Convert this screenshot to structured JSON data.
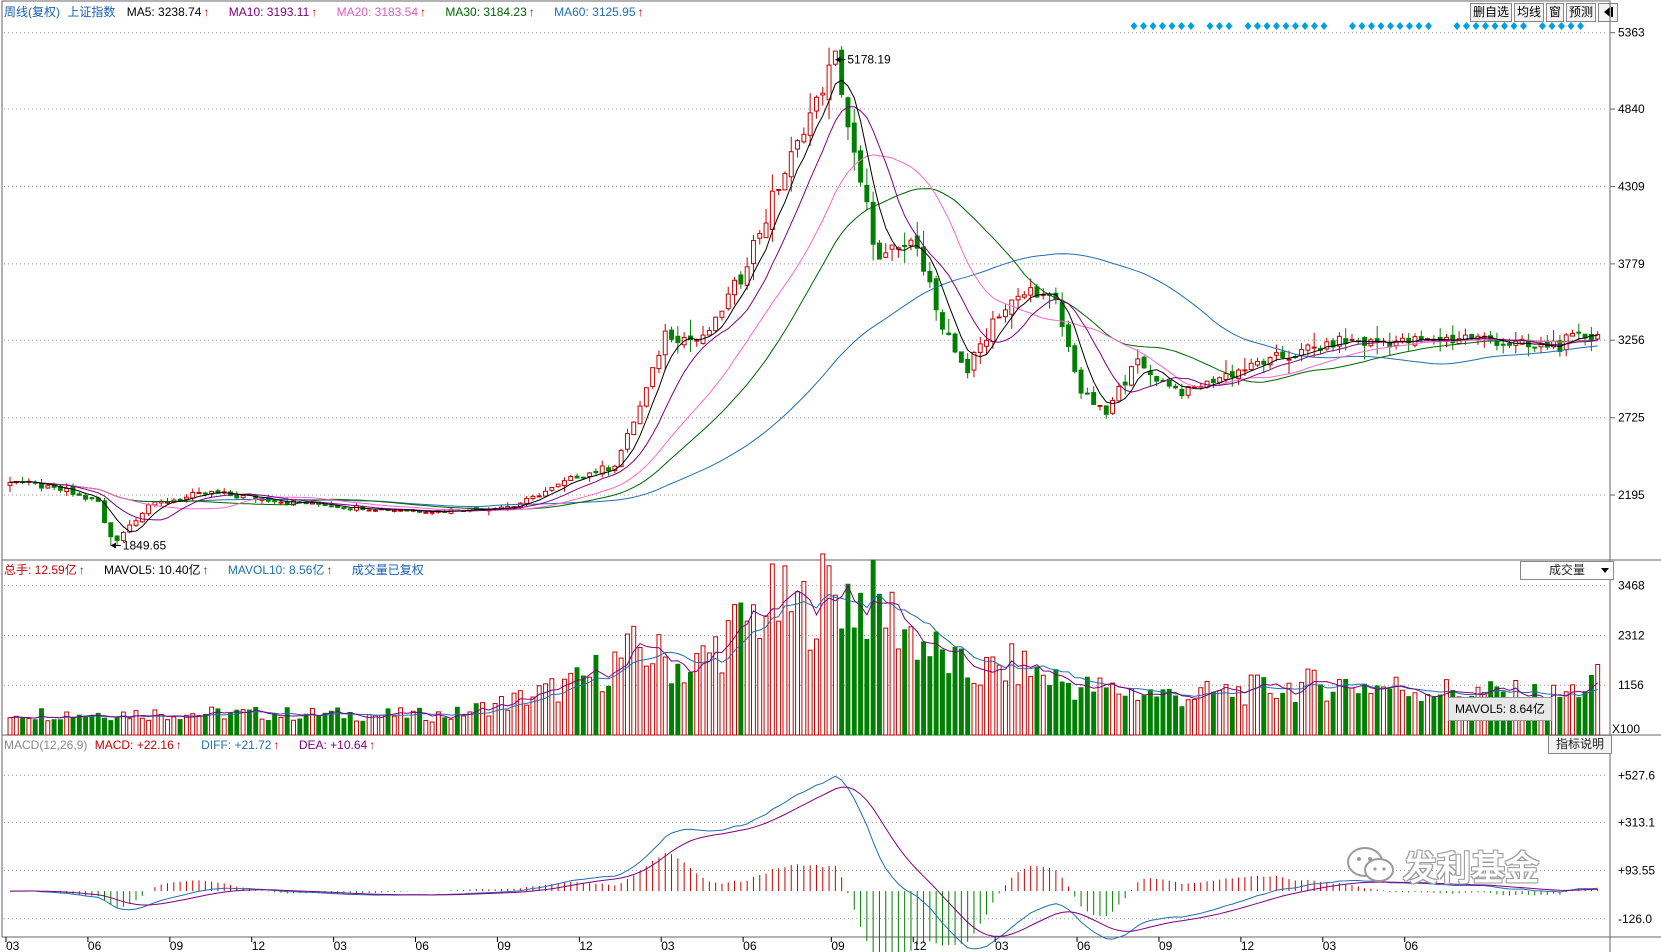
{
  "main_header": {
    "period": "周线(复权)",
    "index_name": "上证指数",
    "ma5": "MA5: 3238.74",
    "ma10": "MA10: 3193.11",
    "ma20": "MA20: 3183.54",
    "ma30": "MA30: 3184.23",
    "ma60": "MA60: 3125.95"
  },
  "toolbar": {
    "delete_watch": "删自选",
    "ma_line": "均线",
    "window": "窗",
    "forecast": "预测",
    "back_icon": "back-arrow-icon"
  },
  "price_axis": [
    "5363",
    "4840",
    "4309",
    "3779",
    "3256",
    "2725",
    "2195"
  ],
  "peak_label": "5178.19",
  "low_label": "1849.65",
  "volume_header": {
    "total": "总手: 12.59亿",
    "mavol5": "MAVOL5: 10.40亿",
    "mavol10": "MAVOL10: 8.56亿",
    "note": "成交量已复权"
  },
  "volume_dropdown": "成交量",
  "volume_axis": [
    "3468",
    "2312",
    "1156"
  ],
  "volume_unit": "X100",
  "volume_tooltip": "MAVOL5: 8.64亿",
  "macd_header": {
    "params": "MACD(12,26,9)",
    "macd": "MACD: +22.16",
    "diff": "DIFF: +21.72",
    "dea": "DEA: +10.64"
  },
  "explain_button": "指标说明",
  "macd_axis": [
    "+527.6",
    "+313.1",
    "+93.55",
    "-126.0"
  ],
  "time_axis": [
    "03",
    "06",
    "09",
    "12",
    "03",
    "06",
    "09",
    "12",
    "03",
    "06",
    "09",
    "12",
    "03",
    "06",
    "09",
    "12",
    "03",
    "06"
  ],
  "watermark": "发利基金",
  "colors": {
    "up": "#c80000",
    "down": "#008000",
    "ma5": "#000000",
    "ma10": "#800080",
    "ma20": "#ff66cc",
    "ma30": "#006400",
    "ma60": "#1f6fb0",
    "diff": "#1f6fb0",
    "dea": "#800080",
    "grid": "#999999",
    "marker": "#00a0e0"
  },
  "chart_data": {
    "type": "candlestick",
    "weekly_close_keypoints": [
      [
        0,
        2300
      ],
      [
        8,
        2230
      ],
      [
        14,
        2150
      ],
      [
        16,
        1849.65
      ],
      [
        22,
        2130
      ],
      [
        32,
        2210
      ],
      [
        44,
        2150
      ],
      [
        58,
        2100
      ],
      [
        68,
        2085
      ],
      [
        80,
        2120
      ],
      [
        90,
        2320
      ],
      [
        96,
        2400
      ],
      [
        100,
        2800
      ],
      [
        104,
        3300
      ],
      [
        110,
        3250
      ],
      [
        116,
        3700
      ],
      [
        122,
        4300
      ],
      [
        127,
        4800
      ],
      [
        131,
        5178.19
      ],
      [
        134,
        4500
      ],
      [
        138,
        3800
      ],
      [
        144,
        3950
      ],
      [
        148,
        3300
      ],
      [
        152,
        3050
      ],
      [
        156,
        3400
      ],
      [
        162,
        3600
      ],
      [
        166,
        3500
      ],
      [
        170,
        2900
      ],
      [
        174,
        2750
      ],
      [
        178,
        3100
      ],
      [
        186,
        2900
      ],
      [
        198,
        3100
      ],
      [
        212,
        3250
      ],
      [
        222,
        3250
      ],
      [
        232,
        3280
      ],
      [
        242,
        3200
      ],
      [
        252,
        3300
      ]
    ],
    "volume_keypoints": [
      [
        0,
        500
      ],
      [
        30,
        500
      ],
      [
        70,
        460
      ],
      [
        80,
        800
      ],
      [
        90,
        1200
      ],
      [
        100,
        2000
      ],
      [
        108,
        1500
      ],
      [
        114,
        2300
      ],
      [
        120,
        3000
      ],
      [
        126,
        2900
      ],
      [
        130,
        3400
      ],
      [
        138,
        3000
      ],
      [
        146,
        2000
      ],
      [
        152,
        1400
      ],
      [
        160,
        1600
      ],
      [
        170,
        1100
      ],
      [
        186,
        900
      ],
      [
        210,
        1200
      ],
      [
        230,
        1000
      ],
      [
        246,
        900
      ],
      [
        252,
        1250
      ]
    ]
  }
}
